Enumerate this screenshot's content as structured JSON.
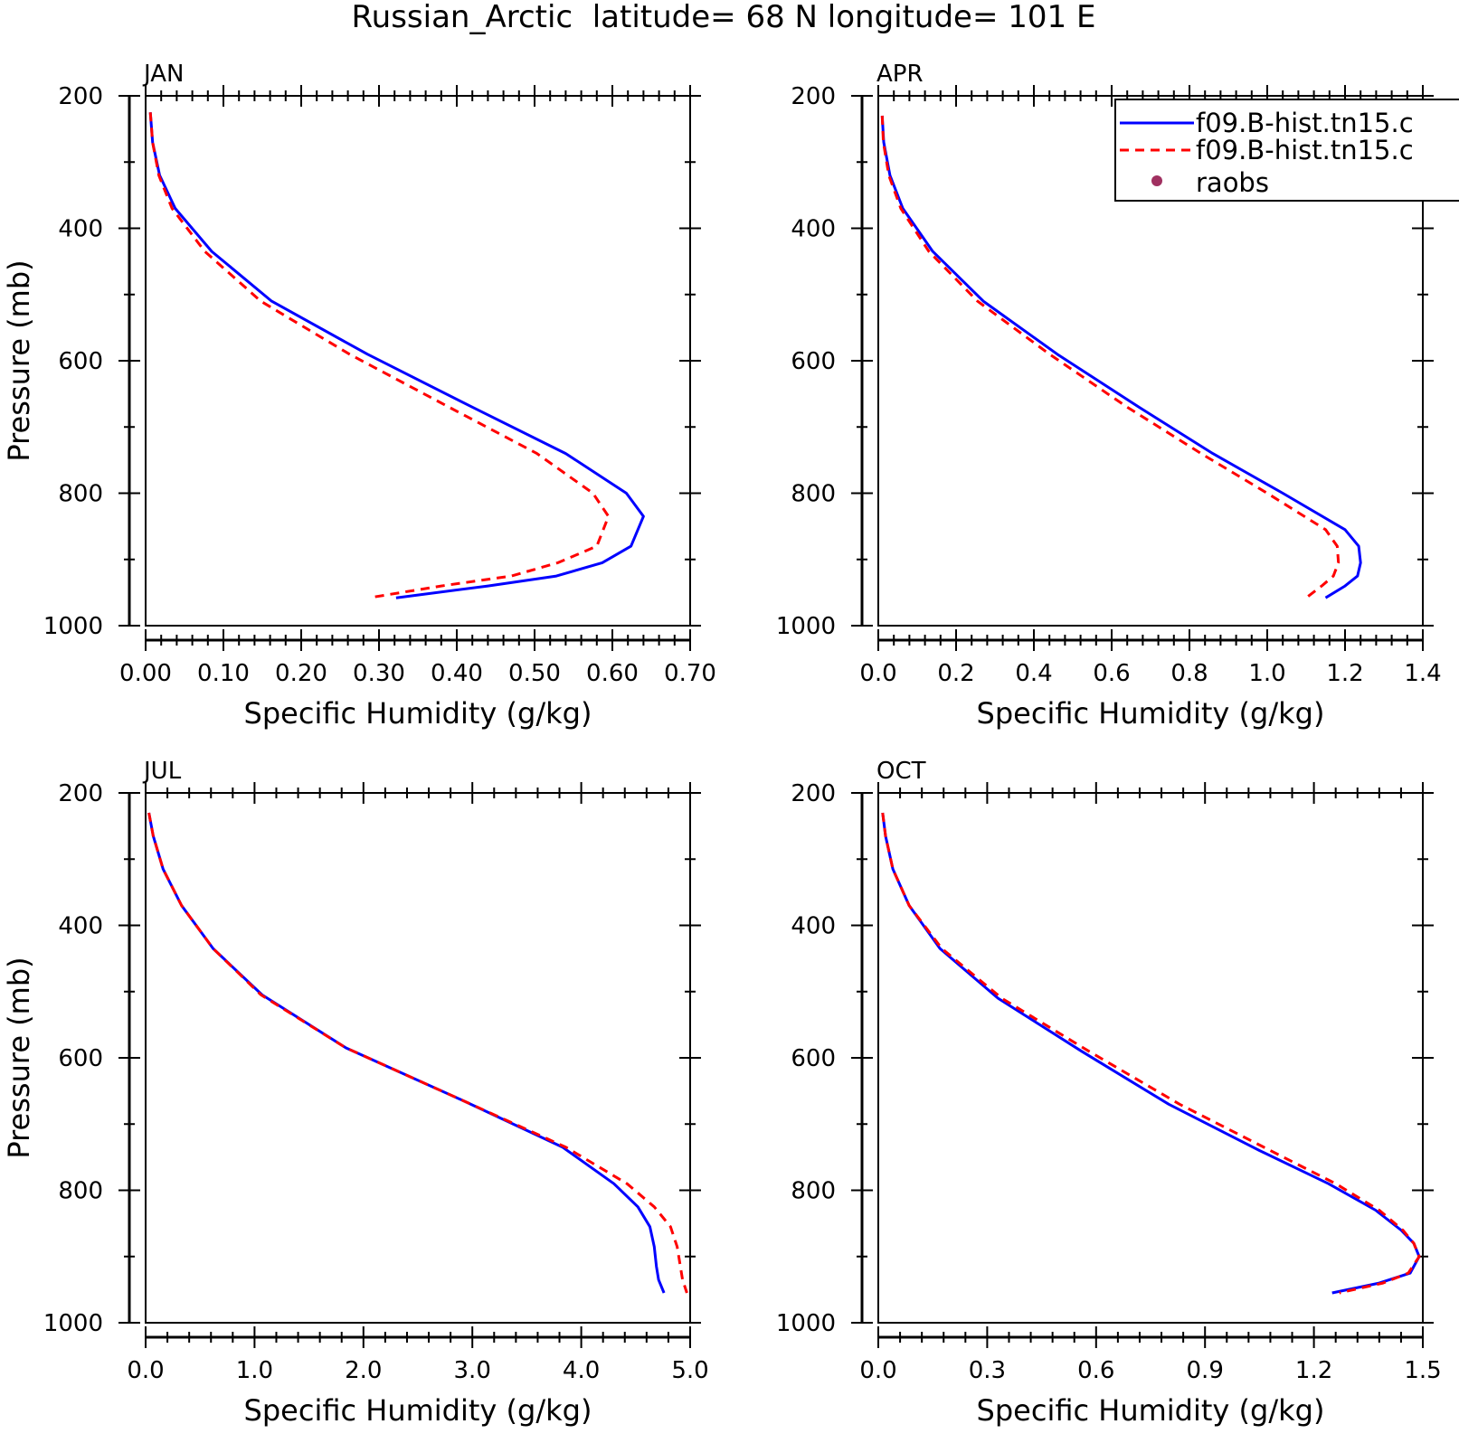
{
  "figure": {
    "title": "Russian_Arctic  latitude= 68 N longitude= 101 E"
  },
  "legend": {
    "entries": [
      {
        "label": "f09.B-hist.tn15.c",
        "color": "#0000ff",
        "style": "solid"
      },
      {
        "label": "f09.B-hist.tn15.c",
        "color": "#ff0000",
        "style": "dashed"
      },
      {
        "label": "raobs",
        "color": "#a03060",
        "style": "marker"
      }
    ]
  },
  "chart_data": [
    {
      "type": "line",
      "title": "JAN",
      "xlabel": "Specific Humidity (g/kg)",
      "ylabel": "Pressure (mb)",
      "xlim": [
        0,
        0.7
      ],
      "ylim": [
        1000,
        200
      ],
      "x_ticks": [
        "0.00",
        "0.10",
        "0.20",
        "0.30",
        "0.40",
        "0.50",
        "0.60",
        "0.70"
      ],
      "y_ticks": [
        "200",
        "400",
        "600",
        "800",
        "1000"
      ],
      "pressure": [
        225,
        270,
        320,
        370,
        435,
        510,
        590,
        670,
        740,
        800,
        835,
        880,
        905,
        925,
        940,
        958
      ],
      "series": [
        {
          "name": "f09.B-hist.tn15.c",
          "color": "#0000ff",
          "dash": "",
          "values": [
            0.006,
            0.009,
            0.018,
            0.038,
            0.085,
            0.162,
            0.285,
            0.42,
            0.54,
            0.618,
            0.64,
            0.624,
            0.587,
            0.528,
            0.44,
            0.322
          ]
        },
        {
          "name": "f09.B-hist.tn15.c",
          "color": "#ff0000",
          "dash": "10,7",
          "values": [
            0.006,
            0.009,
            0.017,
            0.034,
            0.076,
            0.148,
            0.262,
            0.39,
            0.503,
            0.575,
            0.595,
            0.58,
            0.53,
            0.47,
            0.38,
            0.287
          ]
        }
      ]
    },
    {
      "type": "line",
      "title": "APR",
      "xlabel": "Specific Humidity (g/kg)",
      "ylabel": "",
      "xlim": [
        0,
        1.4
      ],
      "ylim": [
        1000,
        200
      ],
      "x_ticks": [
        "0.0",
        "0.2",
        "0.4",
        "0.6",
        "0.8",
        "1.0",
        "1.2",
        "1.4"
      ],
      "y_ticks": [
        "200",
        "400",
        "600",
        "800",
        "1000"
      ],
      "pressure": [
        230,
        270,
        320,
        370,
        435,
        510,
        590,
        670,
        740,
        800,
        855,
        880,
        905,
        925,
        940,
        958
      ],
      "series": [
        {
          "name": "f09.B-hist.tn15.c",
          "color": "#0000ff",
          "dash": "",
          "values": [
            0.01,
            0.014,
            0.03,
            0.063,
            0.14,
            0.27,
            0.46,
            0.67,
            0.86,
            1.04,
            1.2,
            1.235,
            1.24,
            1.232,
            1.2,
            1.15
          ]
        },
        {
          "name": "f09.B-hist.tn15.c",
          "color": "#ff0000",
          "dash": "10,7",
          "values": [
            0.01,
            0.013,
            0.027,
            0.058,
            0.13,
            0.255,
            0.44,
            0.64,
            0.83,
            1.0,
            1.15,
            1.18,
            1.183,
            1.17,
            1.14,
            1.1
          ]
        }
      ]
    },
    {
      "type": "line",
      "title": "JUL",
      "xlabel": "Specific Humidity (g/kg)",
      "ylabel": "Pressure (mb)",
      "xlim": [
        0,
        5
      ],
      "ylim": [
        1000,
        200
      ],
      "x_ticks": [
        "0.0",
        "1.0",
        "2.0",
        "3.0",
        "4.0",
        "5.0"
      ],
      "y_ticks": [
        "200",
        "400",
        "600",
        "800",
        "1000"
      ],
      "pressure": [
        230,
        265,
        315,
        370,
        435,
        505,
        585,
        665,
        735,
        790,
        825,
        855,
        885,
        915,
        935,
        955
      ],
      "series": [
        {
          "name": "f09.B-hist.tn15.c",
          "color": "#0000ff",
          "dash": "",
          "values": [
            0.03,
            0.07,
            0.16,
            0.33,
            0.62,
            1.07,
            1.84,
            2.92,
            3.83,
            4.3,
            4.52,
            4.63,
            4.67,
            4.69,
            4.71,
            4.76
          ]
        },
        {
          "name": "f09.B-hist.tn15.c",
          "color": "#ff0000",
          "dash": "10,7",
          "values": [
            0.03,
            0.07,
            0.16,
            0.33,
            0.62,
            1.06,
            1.84,
            2.92,
            3.86,
            4.42,
            4.67,
            4.82,
            4.88,
            4.91,
            4.93,
            4.97
          ]
        }
      ]
    },
    {
      "type": "line",
      "title": "OCT",
      "xlabel": "Specific Humidity (g/kg)",
      "ylabel": "",
      "xlim": [
        0,
        1.5
      ],
      "ylim": [
        1000,
        200
      ],
      "x_ticks": [
        "0.0",
        "0.3",
        "0.6",
        "0.9",
        "1.2",
        "1.5"
      ],
      "y_ticks": [
        "200",
        "400",
        "600",
        "800",
        "1000"
      ],
      "pressure": [
        230,
        265,
        315,
        370,
        435,
        510,
        590,
        670,
        740,
        790,
        830,
        860,
        880,
        900,
        925,
        940,
        955
      ],
      "series": [
        {
          "name": "f09.B-hist.tn15.c",
          "color": "#0000ff",
          "dash": "",
          "values": [
            0.012,
            0.02,
            0.04,
            0.085,
            0.17,
            0.33,
            0.56,
            0.8,
            1.05,
            1.24,
            1.37,
            1.44,
            1.475,
            1.49,
            1.465,
            1.38,
            1.25
          ]
        },
        {
          "name": "f09.B-hist.tn15.c",
          "color": "#ff0000",
          "dash": "10,7",
          "values": [
            0.012,
            0.02,
            0.04,
            0.085,
            0.175,
            0.34,
            0.58,
            0.83,
            1.08,
            1.26,
            1.38,
            1.445,
            1.475,
            1.49,
            1.46,
            1.39,
            1.27
          ]
        }
      ]
    }
  ]
}
